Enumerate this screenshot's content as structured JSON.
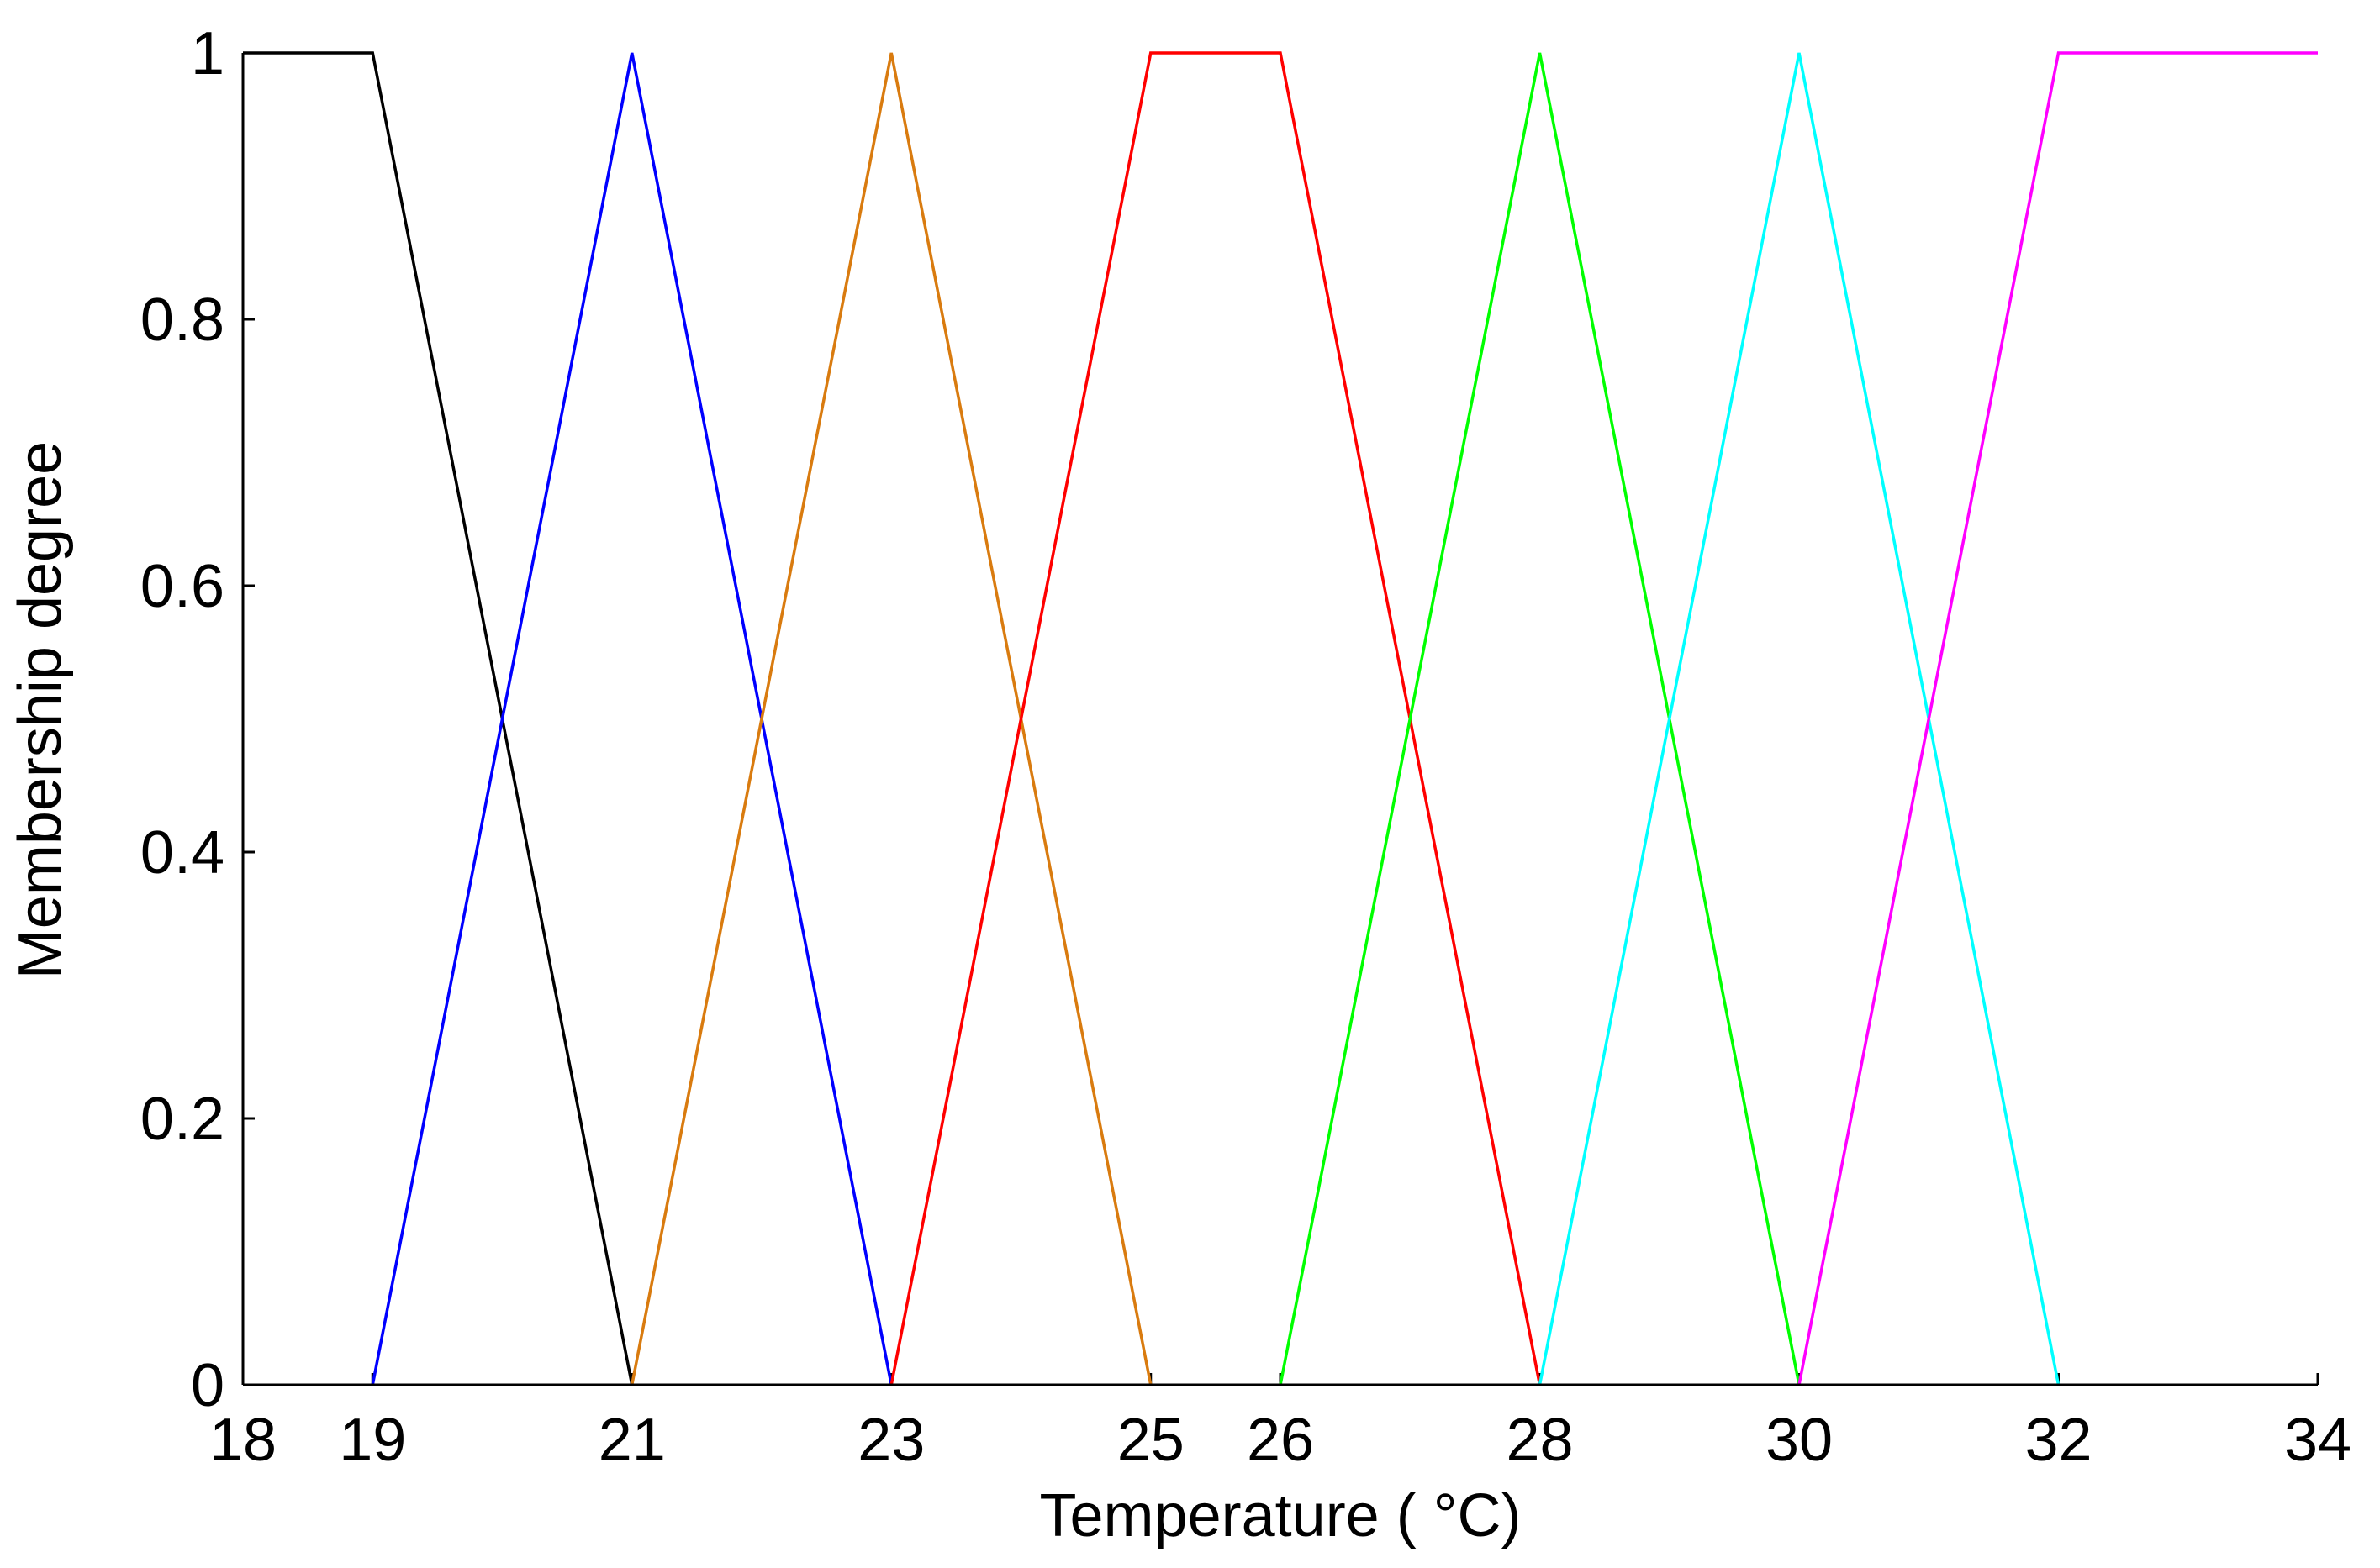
{
  "chart_data": {
    "type": "line",
    "xlabel": "Temperature ( °C)",
    "ylabel": "Membership degree",
    "xlim": [
      18,
      34
    ],
    "ylim": [
      0,
      1
    ],
    "xticks": [
      18,
      19,
      21,
      23,
      25,
      26,
      28,
      30,
      32,
      34
    ],
    "yticks": [
      0,
      0.2,
      0.4,
      0.6,
      0.8,
      1
    ],
    "grid": false,
    "series": [
      {
        "color": "#000000",
        "x": [
          18,
          19,
          21
        ],
        "values": [
          1,
          1,
          0
        ]
      },
      {
        "color": "#0000ff",
        "x": [
          19,
          21,
          23
        ],
        "values": [
          0,
          1,
          0
        ]
      },
      {
        "color": "#d97b0f",
        "x": [
          21,
          23,
          25
        ],
        "values": [
          0,
          1,
          0
        ]
      },
      {
        "color": "#ff0000",
        "x": [
          23,
          25,
          26,
          28
        ],
        "values": [
          0,
          1,
          1,
          0
        ]
      },
      {
        "color": "#00ff00",
        "x": [
          26,
          28,
          30
        ],
        "values": [
          0,
          1,
          0
        ]
      },
      {
        "color": "#00ffff",
        "x": [
          28,
          30,
          32
        ],
        "values": [
          0,
          1,
          0
        ]
      },
      {
        "color": "#ff00ff",
        "x": [
          30,
          32,
          34
        ],
        "values": [
          0,
          1,
          1
        ]
      }
    ]
  }
}
